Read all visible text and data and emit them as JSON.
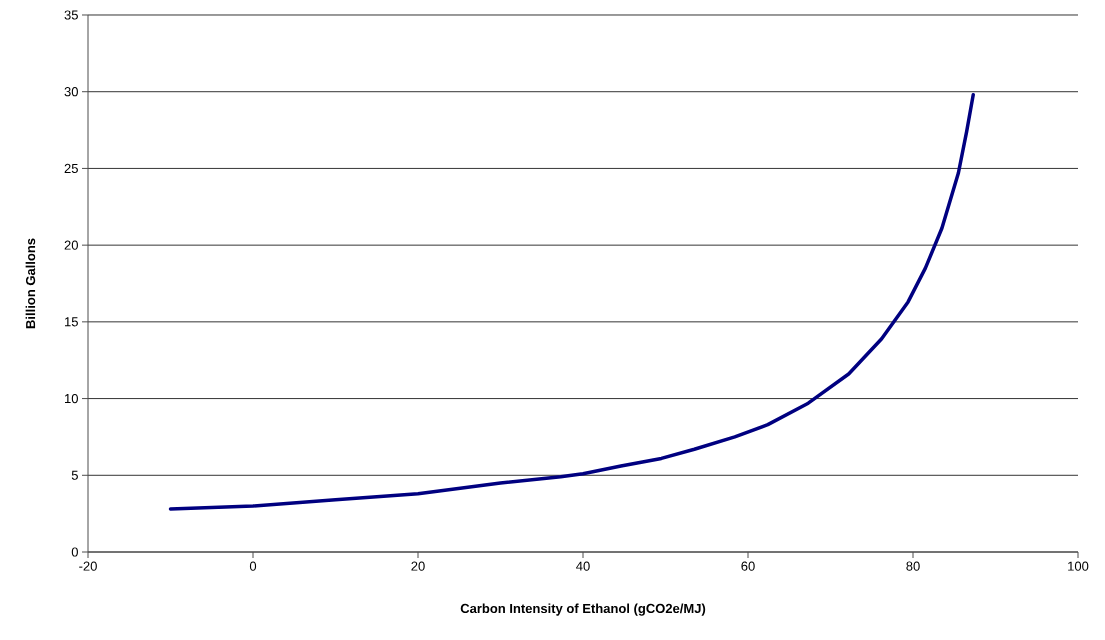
{
  "chart_data": {
    "type": "line",
    "xlabel": "Carbon Intensity of Ethanol (gCO2e/MJ)",
    "ylabel": "Billion Gallons",
    "x": [
      -10,
      0,
      10,
      20,
      30,
      37.3,
      40,
      44.6,
      49.5,
      53.5,
      58.4,
      62.4,
      67.3,
      72.2,
      76.2,
      79.4,
      81.5,
      83.5,
      85.5,
      86.5,
      87.3
    ],
    "values": [
      2.8,
      3.0,
      3.4,
      3.8,
      4.5,
      4.9,
      5.1,
      5.6,
      6.1,
      6.7,
      7.5,
      8.3,
      9.7,
      11.6,
      13.9,
      16.3,
      18.5,
      21.1,
      24.7,
      27.4,
      29.8
    ],
    "color": "#000080",
    "xlim": [
      -20,
      100
    ],
    "ylim": [
      0,
      35
    ],
    "xticks": [
      -20,
      0,
      20,
      40,
      60,
      80,
      100
    ],
    "yticks": [
      0,
      5,
      10,
      15,
      20,
      25,
      30,
      35
    ],
    "grid": "y",
    "marker": "none",
    "line_style": "solid"
  }
}
